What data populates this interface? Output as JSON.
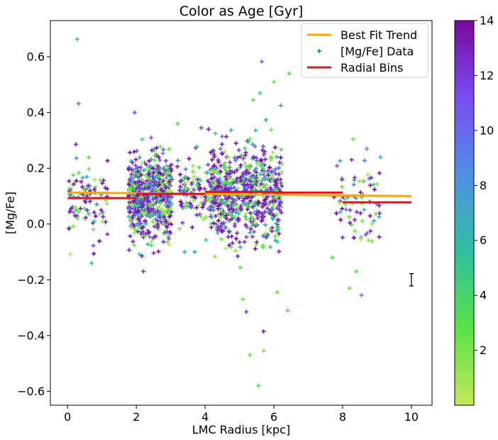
{
  "chart_data": {
    "type": "scatter",
    "title": "Color as Age [Gyr]",
    "xlabel": "LMC Radius [kpc]",
    "ylabel": "[Mg/Fe]",
    "xlim": [
      -0.5,
      10.6
    ],
    "ylim": [
      -0.65,
      0.73
    ],
    "xticks": [
      0,
      2,
      4,
      6,
      8,
      10
    ],
    "yticks": [
      -0.6,
      -0.4,
      -0.2,
      0.0,
      0.2,
      0.4,
      0.6
    ],
    "xtick_labels": [
      "0",
      "2",
      "4",
      "6",
      "8",
      "10"
    ],
    "ytick_labels": [
      "−0.6",
      "−0.4",
      "−0.2",
      "0.0",
      "0.2",
      "0.4",
      "0.6"
    ],
    "grid": false,
    "legend_position": "top-right",
    "legend": [
      {
        "label": "Best Fit Trend",
        "kind": "line",
        "color": "#f5a511"
      },
      {
        "label": "[Mg/Fe] Data",
        "kind": "marker",
        "color": "#2b7fb8"
      },
      {
        "label": "Radial Bins",
        "kind": "line",
        "color": "#d7191c"
      }
    ],
    "colorbar": {
      "label": "",
      "range": [
        0,
        14
      ],
      "ticks": [
        2,
        4,
        6,
        8,
        10,
        12,
        14
      ],
      "tick_labels": [
        "2",
        "4",
        "6",
        "8",
        "10",
        "12",
        "14"
      ],
      "colors": [
        "#c3e85a",
        "#59e246",
        "#2ec0a0",
        "#4f8fe6",
        "#7a4df2",
        "#78099a"
      ]
    },
    "best_fit_trend": {
      "x": [
        0,
        10
      ],
      "y": [
        0.113,
        0.1
      ]
    },
    "radial_bins": [
      {
        "x": [
          0,
          2
        ],
        "y": 0.093
      },
      {
        "x": [
          2,
          4
        ],
        "y": 0.108
      },
      {
        "x": [
          4,
          6
        ],
        "y": 0.115
      },
      {
        "x": [
          6,
          8
        ],
        "y": 0.113
      },
      {
        "x": [
          8,
          10
        ],
        "y": 0.078
      }
    ],
    "typical_error": {
      "x": 10.0,
      "y": -0.2,
      "yerr": 0.022
    },
    "data_clusters": [
      {
        "x_center": 2.4,
        "x_spread": 0.55,
        "y_mean": 0.1,
        "y_sd": 0.07,
        "count": 650
      },
      {
        "x_center": 5.2,
        "x_spread": 0.9,
        "y_mean": 0.11,
        "y_sd": 0.085,
        "count": 650
      },
      {
        "x_center": 4.0,
        "x_spread": 0.7,
        "y_mean": 0.12,
        "y_sd": 0.06,
        "count": 180
      },
      {
        "x_center": 0.6,
        "x_spread": 0.5,
        "y_mean": 0.09,
        "y_sd": 0.075,
        "count": 90
      },
      {
        "x_center": 8.4,
        "x_spread": 0.6,
        "y_mean": 0.06,
        "y_sd": 0.07,
        "count": 70
      }
    ],
    "outliers": [
      {
        "x": 0.28,
        "y": 0.663,
        "age": 5
      },
      {
        "x": 0.32,
        "y": 0.432,
        "age": 9
      },
      {
        "x": 1.95,
        "y": 0.4,
        "age": 11
      },
      {
        "x": 5.65,
        "y": 0.583,
        "age": 9
      },
      {
        "x": 6.45,
        "y": 0.54,
        "age": 3
      },
      {
        "x": 6.0,
        "y": 0.51,
        "age": 2
      },
      {
        "x": 5.6,
        "y": 0.47,
        "age": 4
      },
      {
        "x": 5.4,
        "y": 0.445,
        "age": 2
      },
      {
        "x": 6.2,
        "y": 0.425,
        "age": 7
      },
      {
        "x": 5.7,
        "y": -0.385,
        "age": 13
      },
      {
        "x": 5.7,
        "y": -0.455,
        "age": 2
      },
      {
        "x": 5.3,
        "y": -0.47,
        "age": 2
      },
      {
        "x": 5.55,
        "y": -0.58,
        "age": 3
      },
      {
        "x": 6.4,
        "y": -0.31,
        "age": 3
      },
      {
        "x": 5.2,
        "y": -0.315,
        "age": 12
      },
      {
        "x": 5.1,
        "y": -0.27,
        "age": 2
      },
      {
        "x": 6.1,
        "y": -0.245,
        "age": 2
      },
      {
        "x": 8.2,
        "y": -0.23,
        "age": 2
      },
      {
        "x": 8.55,
        "y": -0.255,
        "age": 7
      },
      {
        "x": 8.4,
        "y": -0.17,
        "age": 3
      },
      {
        "x": 7.7,
        "y": -0.12,
        "age": 3
      },
      {
        "x": 8.3,
        "y": 0.305,
        "age": 2
      },
      {
        "x": 8.7,
        "y": 0.27,
        "age": 8
      },
      {
        "x": 9.1,
        "y": 0.24,
        "age": 6
      },
      {
        "x": 0.7,
        "y": -0.14,
        "age": 6
      },
      {
        "x": 3.4,
        "y": -0.1,
        "age": 5
      },
      {
        "x": 3.7,
        "y": -0.1,
        "age": 7
      },
      {
        "x": 4.3,
        "y": 0.325,
        "age": 4
      },
      {
        "x": 3.2,
        "y": 0.36,
        "age": 3
      },
      {
        "x": 4.1,
        "y": 0.34,
        "age": 13
      }
    ]
  }
}
